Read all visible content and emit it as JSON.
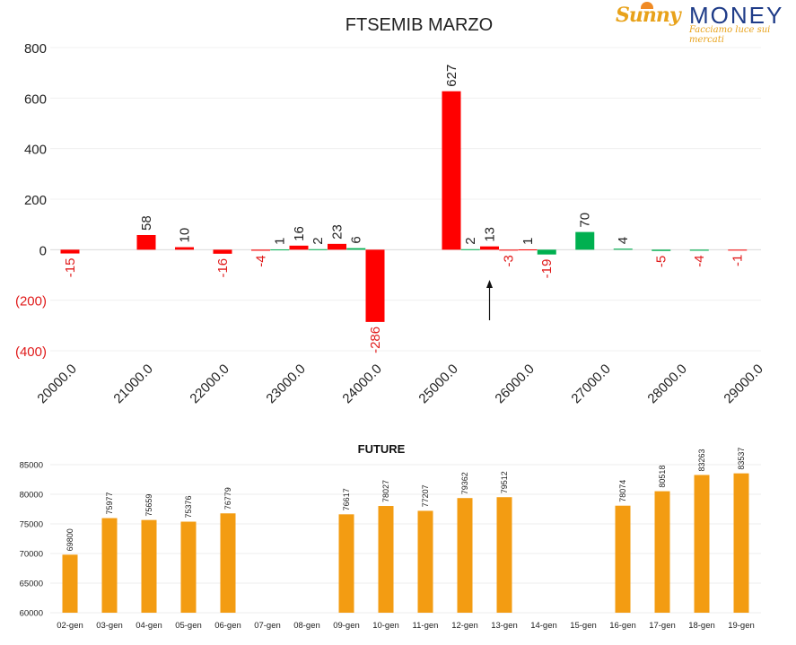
{
  "logo": {
    "brand_a": "Sunny",
    "brand_b": "MONEY",
    "tagline": "Facciamo luce sui mercati"
  },
  "colors": {
    "negative": "#ff0000",
    "positive": "#00b050",
    "future": "#f39c12",
    "axis_neg_label": "#e01b1b"
  },
  "chart_data": [
    {
      "type": "bar",
      "title": "FTSEMIB MARZO",
      "ylim": [
        -400,
        800
      ],
      "yticks": [
        800,
        600,
        400,
        200,
        0,
        -200,
        -400
      ],
      "ytick_labels": [
        "800",
        "600",
        "400",
        "200",
        "0",
        "(200)",
        "(400)"
      ],
      "xtick_labels": [
        "20000.0",
        "21000.0",
        "22000.0",
        "23000.0",
        "24000.0",
        "25000.0",
        "26000.0",
        "27000.0",
        "28000.0",
        "29000.0"
      ],
      "grid": true,
      "bars": [
        {
          "strike": 20000,
          "value": -15,
          "label": "-15",
          "color": "red"
        },
        {
          "strike": 21000,
          "value": 58,
          "label": "58",
          "color": "red"
        },
        {
          "strike": 21500,
          "value": 10,
          "label": "10",
          "color": "red"
        },
        {
          "strike": 22000,
          "value": -16,
          "label": "-16",
          "color": "red"
        },
        {
          "strike": 22500,
          "value": -4,
          "label": "-4",
          "color": "red"
        },
        {
          "strike": 22750,
          "value": 1,
          "label": "1",
          "color": "green"
        },
        {
          "strike": 23000,
          "value": 16,
          "label": "16",
          "color": "red"
        },
        {
          "strike": 23250,
          "value": 2,
          "label": "2",
          "color": "green"
        },
        {
          "strike": 23500,
          "value": 23,
          "label": "23",
          "color": "red"
        },
        {
          "strike": 23750,
          "value": 6,
          "label": "6",
          "color": "green"
        },
        {
          "strike": 24000,
          "value": -286,
          "label": "-286",
          "color": "red"
        },
        {
          "strike": 25000,
          "value": 627,
          "label": "627",
          "color": "red"
        },
        {
          "strike": 25250,
          "value": 2,
          "label": "2",
          "color": "green"
        },
        {
          "strike": 25500,
          "value": 13,
          "label": "13",
          "color": "red"
        },
        {
          "strike": 25750,
          "value": -3,
          "label": "-3",
          "color": "red"
        },
        {
          "strike": 26000,
          "value": 1,
          "label": "1",
          "color": "red"
        },
        {
          "strike": 26250,
          "value": -19,
          "label": "-19",
          "color": "green"
        },
        {
          "strike": 26750,
          "value": 70,
          "label": "70",
          "color": "green"
        },
        {
          "strike": 27250,
          "value": 4,
          "label": "4",
          "color": "green"
        },
        {
          "strike": 27750,
          "value": -5,
          "label": "-5",
          "color": "green"
        },
        {
          "strike": 28250,
          "value": -4,
          "label": "-4",
          "color": "green"
        },
        {
          "strike": 28750,
          "value": -1,
          "label": "-1",
          "color": "red"
        }
      ],
      "annotation": "arrow pointing up at 25500"
    },
    {
      "type": "bar",
      "title": "FUTURE",
      "ylim": [
        60000,
        85000
      ],
      "yticks": [
        85000,
        80000,
        75000,
        70000,
        65000,
        60000
      ],
      "categories": [
        "02-gen",
        "03-gen",
        "04-gen",
        "05-gen",
        "06-gen",
        "07-gen",
        "08-gen",
        "09-gen",
        "10-gen",
        "11-gen",
        "12-gen",
        "13-gen",
        "14-gen",
        "15-gen",
        "16-gen",
        "17-gen",
        "18-gen",
        "19-gen"
      ],
      "values": [
        69800,
        75977,
        75659,
        75376,
        76779,
        null,
        null,
        76617,
        78027,
        77207,
        79362,
        79512,
        null,
        null,
        78074,
        80518,
        83263,
        83537
      ]
    }
  ]
}
